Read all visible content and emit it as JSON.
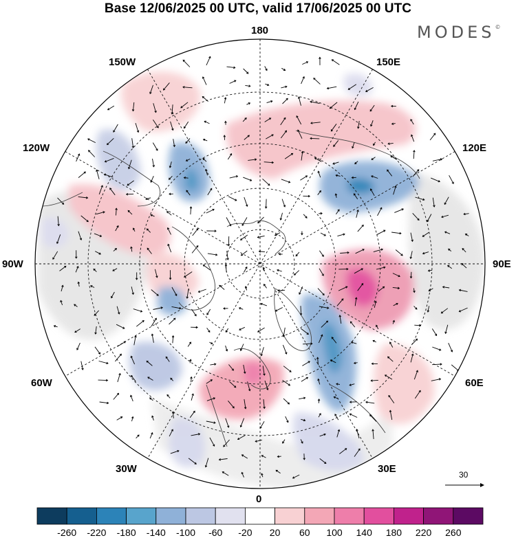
{
  "title": "Base 12/06/2025 00 UTC, valid 17/06/2025 00 UTC",
  "brand": {
    "name": "MODES",
    "mark": "©"
  },
  "map": {
    "projection": "north-polar-stereographic",
    "longitude_labels": {
      "top": "180",
      "bottom": "0",
      "left": "90W",
      "right": "90E",
      "upper_left_1": "150W",
      "upper_left_2": "120W",
      "upper_right_1": "150E",
      "upper_right_2": "120E",
      "lower_left_1": "60W",
      "lower_left_2": "30W",
      "lower_right_1": "60E",
      "lower_right_2": "30E"
    },
    "wind_vector_reference": {
      "value": "30"
    },
    "anomaly_features": [
      {
        "kind": "negative",
        "region": "eastern Siberia",
        "level": -140
      },
      {
        "kind": "negative",
        "region": "western Russia",
        "level": -180
      },
      {
        "kind": "positive",
        "region": "central Siberia",
        "level": 140
      },
      {
        "kind": "positive",
        "region": "western Europe",
        "level": 140
      },
      {
        "kind": "negative",
        "region": "north Pacific",
        "level": -140
      },
      {
        "kind": "negative",
        "region": "north Atlantic",
        "level": -100
      },
      {
        "kind": "positive",
        "region": "Canada",
        "level": 60
      }
    ]
  },
  "colorbar": {
    "levels": [
      "-260",
      "-220",
      "-180",
      "-140",
      "-100",
      "-60",
      "-20",
      "20",
      "60",
      "100",
      "140",
      "180",
      "220",
      "260"
    ],
    "colors": [
      "#0d3c5e",
      "#155f8f",
      "#2c83b8",
      "#58a4cc",
      "#8fb1d8",
      "#bcc7e3",
      "#e1e1ef",
      "#ffffff",
      "#f8d1d3",
      "#f3a7b6",
      "#ee7eaa",
      "#e24f9e",
      "#c0228c",
      "#901577",
      "#5c0a63"
    ]
  }
}
